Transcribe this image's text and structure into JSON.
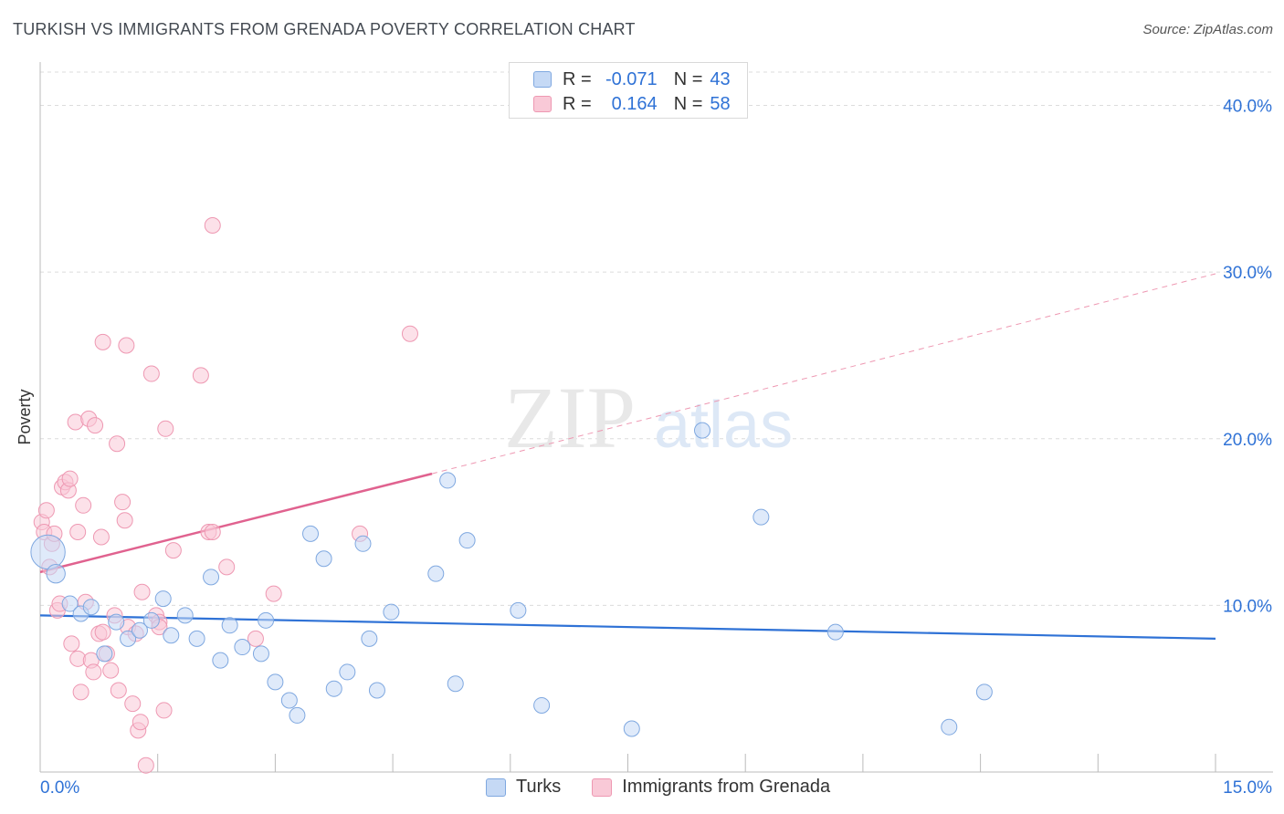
{
  "title": "TURKISH VS IMMIGRANTS FROM GRENADA POVERTY CORRELATION CHART",
  "source": "Source: ZipAtlas.com",
  "watermark": {
    "zip": "ZIP",
    "atlas": "atlas"
  },
  "legend": {
    "rows": [
      {
        "r_label": "R =",
        "r_value": "-0.071",
        "n_label": "N =",
        "n_value": "43"
      },
      {
        "r_label": "R =",
        "r_value": "0.164",
        "n_label": "N =",
        "n_value": "58"
      }
    ]
  },
  "bottom_legend": {
    "turks": "Turks",
    "grenada": "Immigrants from Grenada"
  },
  "colors": {
    "turks_fill": "#c5d9f5",
    "turks_stroke": "#7fa8e0",
    "turks_line": "#2f72d6",
    "grenada_fill": "#f9c9d7",
    "grenada_stroke": "#ee98b2",
    "grenada_line": "#e0628f",
    "axis_label": "#2f72d6",
    "grid": "#dcdcdc"
  },
  "chart_data": {
    "type": "scatter",
    "title": "TURKISH VS IMMIGRANTS FROM GRENADA POVERTY CORRELATION CHART",
    "xlabel": "",
    "ylabel": "Poverty",
    "xlim": [
      0,
      15
    ],
    "ylim": [
      0,
      42
    ],
    "x_tick_labels": [
      "0.0%",
      "15.0%"
    ],
    "y_ticks": [
      10,
      20,
      30,
      40
    ],
    "y_tick_labels": [
      "10.0%",
      "20.0%",
      "30.0%",
      "40.0%"
    ],
    "legend_position": "top-center",
    "series": [
      {
        "name": "Turks",
        "r": -0.071,
        "n": 43,
        "trend": {
          "x0": 0,
          "y0": 9.4,
          "x1": 15,
          "y1": 8.0
        },
        "points": [
          [
            0.1,
            13.2,
            2.2
          ],
          [
            0.2,
            11.9,
            1.2
          ],
          [
            0.38,
            10.1,
            1
          ],
          [
            0.52,
            9.5,
            1
          ],
          [
            0.65,
            9.9,
            1
          ],
          [
            0.82,
            7.1,
            1
          ],
          [
            0.97,
            9.0,
            1
          ],
          [
            1.12,
            8.0,
            1
          ],
          [
            1.27,
            8.5,
            1
          ],
          [
            1.42,
            9.1,
            1
          ],
          [
            1.57,
            10.4,
            1
          ],
          [
            1.67,
            8.2,
            1
          ],
          [
            1.85,
            9.4,
            1
          ],
          [
            2.0,
            8.0,
            1
          ],
          [
            2.18,
            11.7,
            1
          ],
          [
            2.3,
            6.7,
            1
          ],
          [
            2.42,
            8.8,
            1
          ],
          [
            2.58,
            7.5,
            1
          ],
          [
            2.82,
            7.1,
            1
          ],
          [
            2.88,
            9.1,
            1
          ],
          [
            3.0,
            5.4,
            1
          ],
          [
            3.18,
            4.3,
            1
          ],
          [
            3.28,
            3.4,
            1
          ],
          [
            3.45,
            14.3,
            1
          ],
          [
            3.62,
            12.8,
            1
          ],
          [
            3.75,
            5.0,
            1
          ],
          [
            3.92,
            6.0,
            1
          ],
          [
            4.12,
            13.7,
            1
          ],
          [
            4.2,
            8.0,
            1
          ],
          [
            4.3,
            4.9,
            1
          ],
          [
            4.48,
            9.6,
            1
          ],
          [
            5.05,
            11.9,
            1
          ],
          [
            5.2,
            17.5,
            1
          ],
          [
            5.3,
            5.3,
            1
          ],
          [
            5.45,
            13.9,
            1
          ],
          [
            6.1,
            9.7,
            1
          ],
          [
            6.4,
            4.0,
            1
          ],
          [
            7.55,
            2.6,
            1
          ],
          [
            8.45,
            20.5,
            1
          ],
          [
            9.2,
            15.3,
            1
          ],
          [
            10.15,
            8.4,
            1
          ],
          [
            11.6,
            2.7,
            1
          ],
          [
            12.05,
            4.8,
            1
          ]
        ]
      },
      {
        "name": "Immigrants from Grenada",
        "r": 0.164,
        "n": 58,
        "trend": {
          "x0": 0,
          "y0": 12.0,
          "x1": 5,
          "y1": 17.9,
          "dashed_to": {
            "x": 15,
            "y": 29.9
          }
        },
        "points": [
          [
            0.02,
            15.0,
            1
          ],
          [
            0.05,
            14.4,
            1
          ],
          [
            0.08,
            15.7,
            1
          ],
          [
            0.12,
            12.3,
            1
          ],
          [
            0.15,
            13.7,
            1
          ],
          [
            0.18,
            14.3,
            1
          ],
          [
            0.22,
            9.7,
            1
          ],
          [
            0.25,
            10.1,
            1
          ],
          [
            0.28,
            17.1,
            1
          ],
          [
            0.32,
            17.4,
            1
          ],
          [
            0.36,
            16.9,
            1
          ],
          [
            0.38,
            17.6,
            1
          ],
          [
            0.4,
            7.7,
            1
          ],
          [
            0.45,
            21.0,
            1
          ],
          [
            0.48,
            6.8,
            1
          ],
          [
            0.48,
            14.4,
            1
          ],
          [
            0.52,
            4.8,
            1
          ],
          [
            0.55,
            16.0,
            1
          ],
          [
            0.58,
            10.2,
            1
          ],
          [
            0.62,
            21.2,
            1
          ],
          [
            0.65,
            6.7,
            1
          ],
          [
            0.68,
            6.0,
            1
          ],
          [
            0.7,
            20.8,
            1
          ],
          [
            0.75,
            8.3,
            1
          ],
          [
            0.78,
            14.1,
            1
          ],
          [
            0.8,
            8.4,
            1
          ],
          [
            0.8,
            25.8,
            1
          ],
          [
            0.85,
            7.1,
            1
          ],
          [
            0.9,
            6.1,
            1
          ],
          [
            0.95,
            9.4,
            1
          ],
          [
            0.98,
            19.7,
            1
          ],
          [
            1.0,
            4.9,
            1
          ],
          [
            1.05,
            16.2,
            1
          ],
          [
            1.08,
            15.1,
            1
          ],
          [
            1.1,
            25.6,
            1
          ],
          [
            1.12,
            8.7,
            1
          ],
          [
            1.18,
            4.1,
            1
          ],
          [
            1.22,
            8.3,
            1
          ],
          [
            1.25,
            2.5,
            1
          ],
          [
            1.28,
            3.0,
            1
          ],
          [
            1.3,
            10.8,
            1
          ],
          [
            1.35,
            0.4,
            1
          ],
          [
            1.42,
            23.9,
            1
          ],
          [
            1.48,
            9.4,
            1
          ],
          [
            1.52,
            9.0,
            1
          ],
          [
            1.52,
            8.7,
            1
          ],
          [
            1.58,
            3.7,
            1
          ],
          [
            1.6,
            20.6,
            1
          ],
          [
            1.7,
            13.3,
            1
          ],
          [
            2.05,
            23.8,
            1
          ],
          [
            2.15,
            14.4,
            1
          ],
          [
            2.2,
            14.4,
            1
          ],
          [
            2.2,
            32.8,
            1
          ],
          [
            2.38,
            12.3,
            1
          ],
          [
            2.75,
            8.0,
            1
          ],
          [
            2.98,
            10.7,
            1
          ],
          [
            4.08,
            14.3,
            1
          ],
          [
            4.72,
            26.3,
            1
          ]
        ]
      }
    ]
  }
}
